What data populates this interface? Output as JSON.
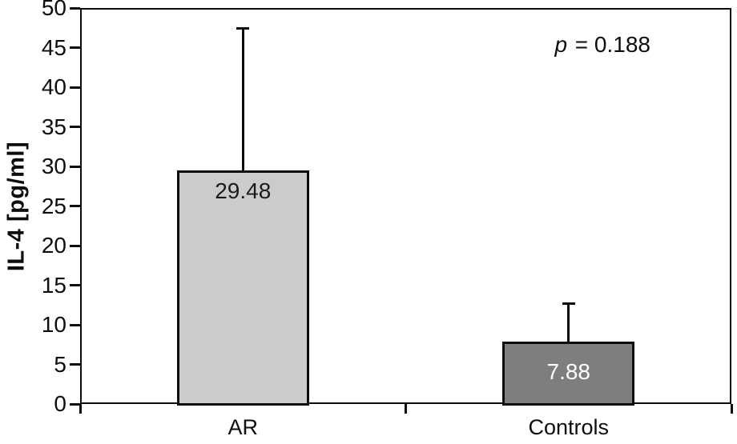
{
  "chart_data": {
    "type": "bar",
    "title": "",
    "ylabel": "IL-4 [pg/ml]",
    "xlabel": "",
    "ylim": [
      0,
      50
    ],
    "ytick_step": 5,
    "ytick_labels": [
      "0",
      "5",
      "10",
      "15",
      "20",
      "25",
      "30",
      "35",
      "40",
      "45",
      "50"
    ],
    "categories": [
      "AR",
      "Controls"
    ],
    "values": [
      29.48,
      7.88
    ],
    "value_labels": [
      "29.48",
      "7.88"
    ],
    "errors_upper": [
      18.0,
      4.8
    ],
    "bar_colors": [
      "#cbcbcb",
      "#7e7e7e"
    ],
    "value_label_colors": [
      "#1a1a1a",
      "#ffffff"
    ],
    "line_color": "#0d0d0d",
    "grid": false,
    "frame": "box",
    "legend": "none",
    "annotation": {
      "symbol": "p",
      "rest": " = 0.188"
    }
  }
}
